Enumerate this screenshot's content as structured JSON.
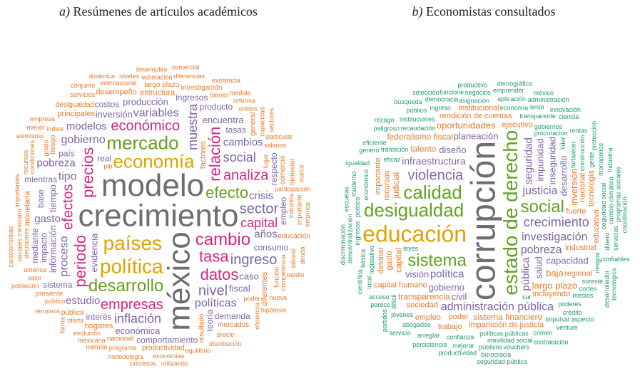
{
  "panels": [
    {
      "label": "a)",
      "title": "Resúmenes de artículos académicos",
      "groups": [
        {
          "color": "#6d6e71",
          "words": [
            "crecimiento",
            "modelo",
            "méxico"
          ]
        },
        {
          "color": "#e1a100",
          "words": [
            "países",
            "política",
            "economía"
          ]
        },
        {
          "color": "#6a9e1f",
          "words": [
            "mercado",
            "desarrollo",
            "efecto"
          ]
        },
        {
          "color": "#d6267f",
          "words": [
            "cambio",
            "tasa",
            "precios",
            "relación",
            "periodo",
            "datos",
            "económico",
            "empresas",
            "analiza",
            "efectos",
            "capital"
          ]
        },
        {
          "color": "#7e66a8",
          "words": [
            "nivel",
            "sector",
            "ingreso",
            "social",
            "inflación",
            "muestra",
            "variables",
            "gobierno",
            "proceso",
            "políticas",
            "tipo",
            "cambios",
            "pobreza",
            "crisis",
            "modelos",
            "años",
            "gasto",
            "estudio",
            "evidencia",
            "caso",
            "inversión",
            "tiempo",
            "producción",
            "encuentra",
            "información",
            "fiscal",
            "económica",
            "teoría",
            "real",
            "país",
            "impacto",
            "consumo",
            "tasas",
            "base",
            "interés",
            "mientras",
            "respecto",
            "ingresos",
            "producto",
            "empleo",
            "demanda",
            "sistema",
            "mediante",
            "comportamiento",
            "costos"
          ]
        },
        {
          "color": "#e8792a",
          "words": [
            "diferentes",
            "estructura",
            "hogares",
            "monetaria",
            "principales",
            "desempeño",
            "factores",
            "largo plazo",
            "nacional",
            "resultado",
            "mercados",
            "pública",
            "riesgo",
            "productividad",
            "presente",
            "comercio",
            "investigación",
            "desigualdad",
            "general",
            "educación",
            "participación",
            "industria",
            "poder",
            "américa",
            "función",
            "programa",
            "oferta",
            "decisiones",
            "evolución",
            "internacional",
            "competencia",
            "salarios",
            "público",
            "grado",
            "índice",
            "bienes",
            "mexicano",
            "estimación",
            "precio",
            "condiciones",
            "economías",
            "diferencias",
            "capacidad",
            "equilibrio",
            "unidos",
            "bienestar",
            "distribución",
            "mexicana",
            "importante",
            "metodología",
            "valor",
            "laboral",
            "servicios",
            "niveles",
            "eficiencia",
            "desempleo",
            "particular",
            "importantes",
            "términos",
            "reforma",
            "sociales",
            "método",
            "hipótesis",
            "características",
            "utilizando",
            "procesos",
            "recursos",
            "población",
            "asimismo",
            "lugar",
            "empresa",
            "dinámica",
            "sectores",
            "comercial",
            "existencia",
            "empírica",
            "conjunto",
            "nueva",
            "marco",
            "medida",
            "pib",
            "forma",
            "menor",
            "medio",
            "deuda"
          ]
        }
      ]
    },
    {
      "label": "b)",
      "title": "Economistas consultados",
      "groups": [
        {
          "color": "#6d6e71",
          "words": [
            "corrupción"
          ]
        },
        {
          "color": "#e1a100",
          "words": [
            "educación"
          ]
        },
        {
          "color": "#5fa41f",
          "words": [
            "estado de derecho",
            "desigualdad",
            "calidad",
            "sistema",
            "social"
          ]
        },
        {
          "color": "#7e66a8",
          "words": [
            "violencia",
            "crecimiento",
            "investigación",
            "administración pública",
            "pobreza",
            "justicia",
            "política",
            "pública",
            "seguridad",
            "infraestructura",
            "salud",
            "gobierno",
            "diseño",
            "impunidad",
            "planeación",
            "capacidad",
            "inseguridad",
            "visión",
            "civil",
            "desarrollo"
          ]
        },
        {
          "color": "#e8792a",
          "words": [
            "largo plazo",
            "oportunidades",
            "inversión",
            "baja",
            "talento",
            "capital",
            "transparencia",
            "sistema financiero",
            "judicial",
            "federalismo fiscal",
            "capital humano",
            "gasto",
            "incluyendo",
            "fuerte",
            "recursos",
            "industrial",
            "ejecutivo",
            "nacional",
            "poder",
            "sociedad",
            "tecnología",
            "rendición de cuentas",
            "regional",
            "importante",
            "impartición de justicia",
            "institucional",
            "educativa",
            "trabajo",
            "empleo",
            "detonar"
          ]
        },
        {
          "color": "#1f9a6e",
          "words": [
            "procuración",
            "políticas públicas",
            "seguridad social",
            "transición",
            "recaudación",
            "fortalecer",
            "transparente",
            "gobiernos",
            "legislativo",
            "economía",
            "poderes",
            "construcción",
            "confianza",
            "instituciones",
            "económico",
            "ingreso",
            "eficaz",
            "riesgos",
            "asignación",
            "sureste",
            "difícil",
            "movilidad social",
            "leyes",
            "gente",
            "abogados",
            "cortes",
            "dinero",
            "medios",
            "impulsar",
            "básica",
            "jóvenes",
            "aplicación",
            "ingresos",
            "crédito",
            "crimen",
            "cambio climático",
            "públicos",
            "mejorar",
            "líder",
            "arreglar",
            "democracia",
            "político",
            "sur",
            "acceso",
            "descentralización",
            "negocios",
            "lento",
            "monopolios",
            "público",
            "vouchers",
            "programas sociales",
            "emprender",
            "rentas",
            "servicios",
            "confiables",
            "peligroso",
            "local",
            "funcione",
            "burocracia",
            "moderno",
            "productividad",
            "género",
            "protección",
            "persistencia",
            "eficiente",
            "coordinación",
            "ciencia",
            "administración",
            "desarrollador",
            "parece",
            "venture",
            "científica",
            "igualdad",
            "productivo",
            "escuelas",
            "innovación",
            "aspecto",
            "industria",
            "contratación",
            "demográfica",
            "discriminación",
            "servicio",
            "seguridad pública",
            "partidos",
            "rezago",
            "búsqueda",
            "tecnológica",
            "selección",
            "méxico"
          ]
        }
      ]
    }
  ]
}
